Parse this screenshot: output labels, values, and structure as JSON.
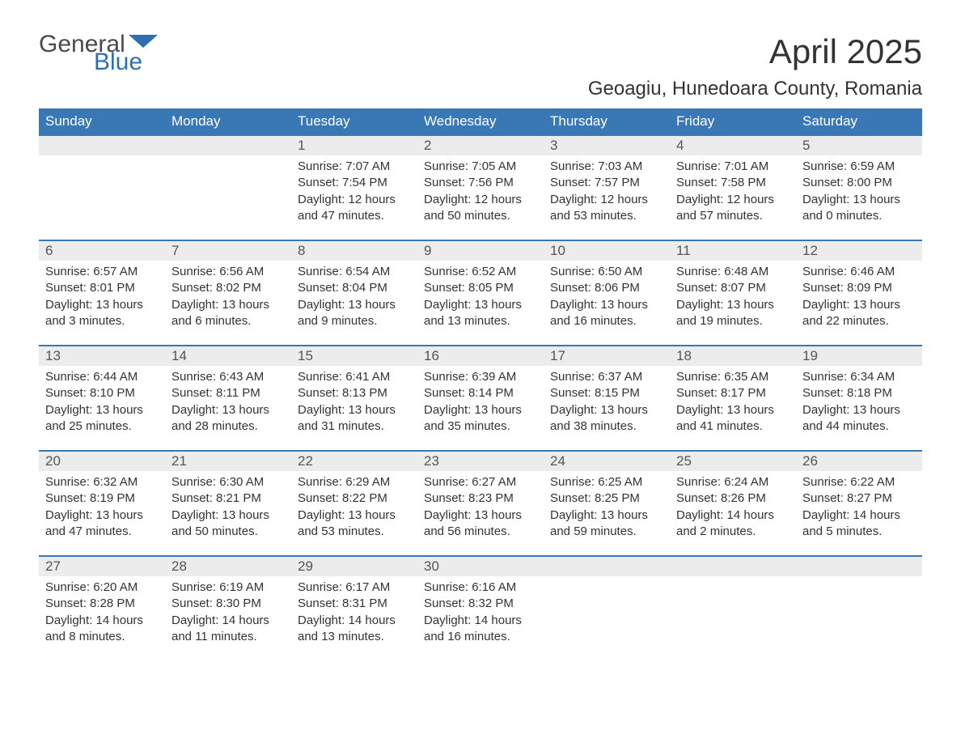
{
  "logo": {
    "text1": "General",
    "text2": "Blue",
    "flag_color": "#2d6fb0"
  },
  "title": "April 2025",
  "subtitle": "Geoagiu, Hunedoara County, Romania",
  "colors": {
    "header_bg": "#3a78b5",
    "header_text": "#ffffff",
    "daynum_bg": "#ececec",
    "daynum_text": "#555555",
    "body_text": "#333333",
    "border": "#3a78b5",
    "page_bg": "#ffffff"
  },
  "typography": {
    "title_fontsize": 42,
    "subtitle_fontsize": 24,
    "header_fontsize": 17,
    "daynum_fontsize": 17,
    "content_fontsize": 15
  },
  "day_headers": [
    "Sunday",
    "Monday",
    "Tuesday",
    "Wednesday",
    "Thursday",
    "Friday",
    "Saturday"
  ],
  "weeks": [
    [
      null,
      null,
      {
        "n": "1",
        "sunrise": "7:07 AM",
        "sunset": "7:54 PM",
        "dl": "12 hours and 47 minutes."
      },
      {
        "n": "2",
        "sunrise": "7:05 AM",
        "sunset": "7:56 PM",
        "dl": "12 hours and 50 minutes."
      },
      {
        "n": "3",
        "sunrise": "7:03 AM",
        "sunset": "7:57 PM",
        "dl": "12 hours and 53 minutes."
      },
      {
        "n": "4",
        "sunrise": "7:01 AM",
        "sunset": "7:58 PM",
        "dl": "12 hours and 57 minutes."
      },
      {
        "n": "5",
        "sunrise": "6:59 AM",
        "sunset": "8:00 PM",
        "dl": "13 hours and 0 minutes."
      }
    ],
    [
      {
        "n": "6",
        "sunrise": "6:57 AM",
        "sunset": "8:01 PM",
        "dl": "13 hours and 3 minutes."
      },
      {
        "n": "7",
        "sunrise": "6:56 AM",
        "sunset": "8:02 PM",
        "dl": "13 hours and 6 minutes."
      },
      {
        "n": "8",
        "sunrise": "6:54 AM",
        "sunset": "8:04 PM",
        "dl": "13 hours and 9 minutes."
      },
      {
        "n": "9",
        "sunrise": "6:52 AM",
        "sunset": "8:05 PM",
        "dl": "13 hours and 13 minutes."
      },
      {
        "n": "10",
        "sunrise": "6:50 AM",
        "sunset": "8:06 PM",
        "dl": "13 hours and 16 minutes."
      },
      {
        "n": "11",
        "sunrise": "6:48 AM",
        "sunset": "8:07 PM",
        "dl": "13 hours and 19 minutes."
      },
      {
        "n": "12",
        "sunrise": "6:46 AM",
        "sunset": "8:09 PM",
        "dl": "13 hours and 22 minutes."
      }
    ],
    [
      {
        "n": "13",
        "sunrise": "6:44 AM",
        "sunset": "8:10 PM",
        "dl": "13 hours and 25 minutes."
      },
      {
        "n": "14",
        "sunrise": "6:43 AM",
        "sunset": "8:11 PM",
        "dl": "13 hours and 28 minutes."
      },
      {
        "n": "15",
        "sunrise": "6:41 AM",
        "sunset": "8:13 PM",
        "dl": "13 hours and 31 minutes."
      },
      {
        "n": "16",
        "sunrise": "6:39 AM",
        "sunset": "8:14 PM",
        "dl": "13 hours and 35 minutes."
      },
      {
        "n": "17",
        "sunrise": "6:37 AM",
        "sunset": "8:15 PM",
        "dl": "13 hours and 38 minutes."
      },
      {
        "n": "18",
        "sunrise": "6:35 AM",
        "sunset": "8:17 PM",
        "dl": "13 hours and 41 minutes."
      },
      {
        "n": "19",
        "sunrise": "6:34 AM",
        "sunset": "8:18 PM",
        "dl": "13 hours and 44 minutes."
      }
    ],
    [
      {
        "n": "20",
        "sunrise": "6:32 AM",
        "sunset": "8:19 PM",
        "dl": "13 hours and 47 minutes."
      },
      {
        "n": "21",
        "sunrise": "6:30 AM",
        "sunset": "8:21 PM",
        "dl": "13 hours and 50 minutes."
      },
      {
        "n": "22",
        "sunrise": "6:29 AM",
        "sunset": "8:22 PM",
        "dl": "13 hours and 53 minutes."
      },
      {
        "n": "23",
        "sunrise": "6:27 AM",
        "sunset": "8:23 PM",
        "dl": "13 hours and 56 minutes."
      },
      {
        "n": "24",
        "sunrise": "6:25 AM",
        "sunset": "8:25 PM",
        "dl": "13 hours and 59 minutes."
      },
      {
        "n": "25",
        "sunrise": "6:24 AM",
        "sunset": "8:26 PM",
        "dl": "14 hours and 2 minutes."
      },
      {
        "n": "26",
        "sunrise": "6:22 AM",
        "sunset": "8:27 PM",
        "dl": "14 hours and 5 minutes."
      }
    ],
    [
      {
        "n": "27",
        "sunrise": "6:20 AM",
        "sunset": "8:28 PM",
        "dl": "14 hours and 8 minutes."
      },
      {
        "n": "28",
        "sunrise": "6:19 AM",
        "sunset": "8:30 PM",
        "dl": "14 hours and 11 minutes."
      },
      {
        "n": "29",
        "sunrise": "6:17 AM",
        "sunset": "8:31 PM",
        "dl": "14 hours and 13 minutes."
      },
      {
        "n": "30",
        "sunrise": "6:16 AM",
        "sunset": "8:32 PM",
        "dl": "14 hours and 16 minutes."
      },
      null,
      null,
      null
    ]
  ],
  "labels": {
    "sunrise": "Sunrise:",
    "sunset": "Sunset:",
    "daylight": "Daylight:"
  }
}
